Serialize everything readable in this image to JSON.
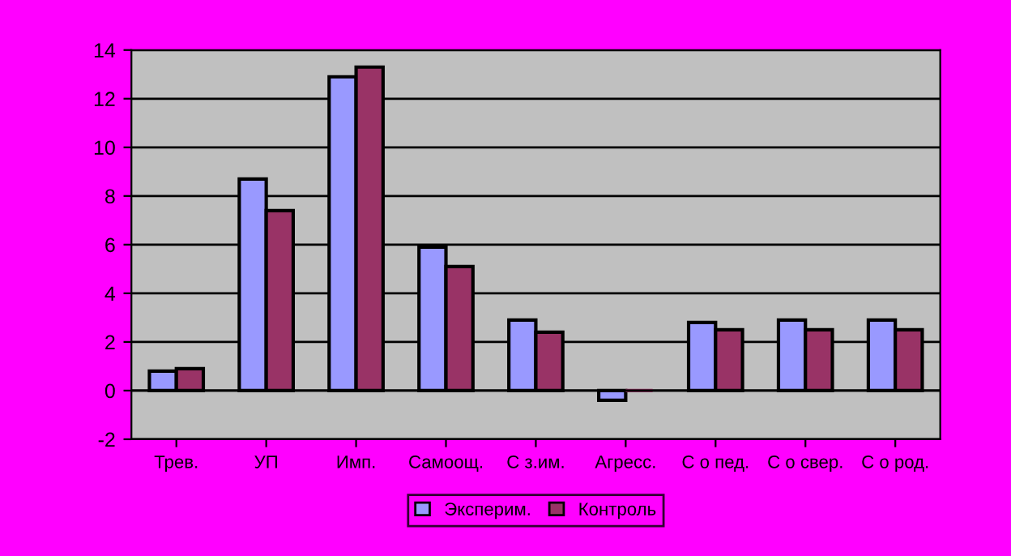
{
  "chart_data": {
    "type": "bar",
    "categories": [
      "Трев.",
      "УП",
      "Имп.",
      "Самоощ.",
      "С з.им.",
      "Агресс.",
      "С о пед.",
      "С о свер.",
      "С о род."
    ],
    "series": [
      {
        "name": "Эксперим.",
        "color": "#9999ff",
        "values": [
          0.8,
          8.7,
          12.9,
          5.9,
          2.9,
          -0.4,
          2.8,
          2.9,
          2.9
        ]
      },
      {
        "name": "Контроль",
        "color": "#993366",
        "values": [
          0.9,
          7.4,
          13.3,
          5.1,
          2.4,
          0,
          2.5,
          2.5,
          2.5
        ]
      }
    ],
    "ylim": [
      -2,
      14
    ],
    "yticks": [
      -2,
      0,
      2,
      4,
      6,
      8,
      10,
      12,
      14
    ],
    "grid": "y",
    "legend": "bottom"
  }
}
